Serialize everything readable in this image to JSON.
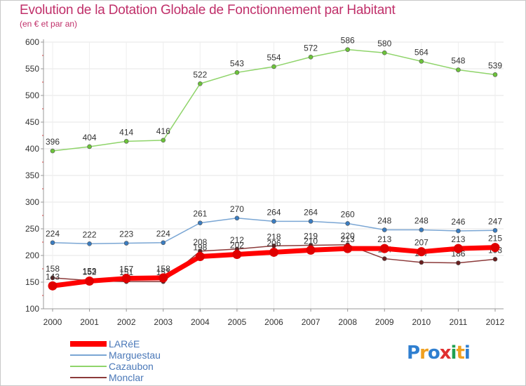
{
  "chart_data": {
    "type": "line",
    "title": "Evolution de la Dotation Globale de Fonctionnement par Habitant",
    "subtitle": "(en € et par an)",
    "xlabel": "",
    "ylabel": "",
    "ylim": [
      100,
      600
    ],
    "yticks": [
      100,
      150,
      200,
      250,
      300,
      350,
      400,
      450,
      500,
      550,
      600
    ],
    "categories": [
      "2000",
      "2001",
      "2002",
      "2003",
      "2004",
      "2005",
      "2006",
      "2007",
      "2008",
      "2009",
      "2010",
      "2011",
      "2012"
    ],
    "series": [
      {
        "name": "Cazaubon",
        "color": "#8fd46a",
        "point_color": "#6cc33a",
        "values": [
          396,
          404,
          414,
          416,
          522,
          543,
          554,
          572,
          586,
          580,
          564,
          548,
          539
        ]
      },
      {
        "name": "Marguestau",
        "color": "#7aa6d4",
        "point_color": "#3a7cc0",
        "values": [
          224,
          222,
          223,
          224,
          261,
          270,
          264,
          264,
          260,
          248,
          248,
          246,
          247
        ]
      },
      {
        "name": "Monclar",
        "color": "#8c3a3a",
        "point_color": "#6a1e1e",
        "values": [
          158,
          153,
          151,
          151,
          208,
          212,
          218,
          219,
          220,
          194,
          187,
          186,
          193
        ]
      },
      {
        "name": "LARéE",
        "color": "#ff0000",
        "point_color": "#e00000",
        "values": [
          143,
          152,
          157,
          158,
          198,
          202,
          206,
          210,
          213,
          213,
          207,
          213,
          215
        ]
      }
    ],
    "legend": [
      "LARéE",
      "Marguestau",
      "Cazaubon",
      "Monclar"
    ],
    "legend_position": "bottom-left",
    "grid": true
  },
  "logo": {
    "text": "Proxiti",
    "colors": [
      "#2f7fd0",
      "#f0a020",
      "#2f7fd0",
      "#e03030",
      "#20a050",
      "#f0a020",
      "#2f7fd0"
    ]
  }
}
